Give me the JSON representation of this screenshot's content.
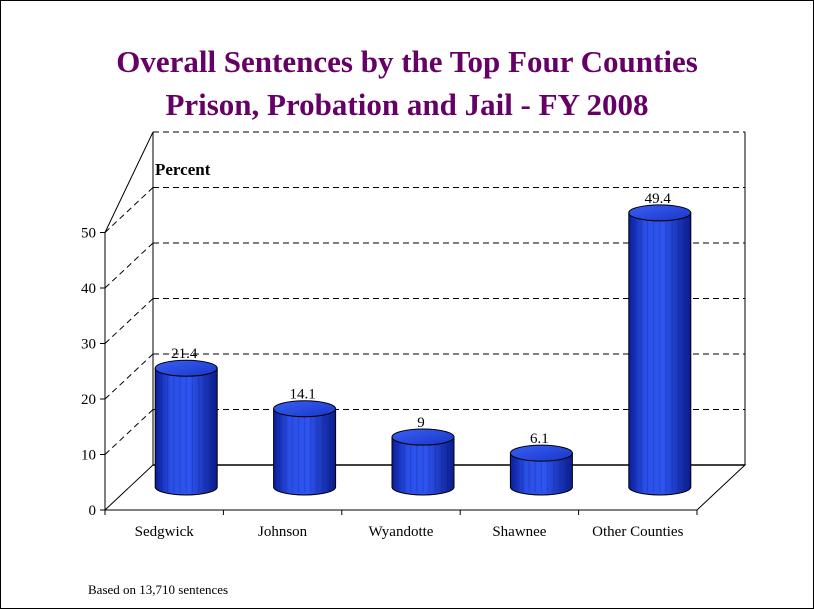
{
  "chart_data": {
    "type": "bar",
    "title": "Overall Sentences by the Top Four Counties",
    "subtitle": "Prison, Probation and Jail - FY 2008",
    "ylabel": "Percent",
    "xlabel": "",
    "categories": [
      "Sedgwick",
      "Johnson",
      "Wyandotte",
      "Shawnee",
      "Other Counties"
    ],
    "values": [
      21.4,
      14.1,
      9,
      6.1,
      49.4
    ],
    "value_labels": [
      "21.4",
      "14.1",
      "9",
      "6.1",
      "49.4"
    ],
    "ylim": [
      0,
      50
    ],
    "yticks": [
      "0",
      "10",
      "20",
      "30",
      "40",
      "50"
    ],
    "grid": true,
    "bar_style": "3d-cylinder",
    "bar_color": "#1f3fd6",
    "footnote": "Based on 13,710 sentences"
  }
}
